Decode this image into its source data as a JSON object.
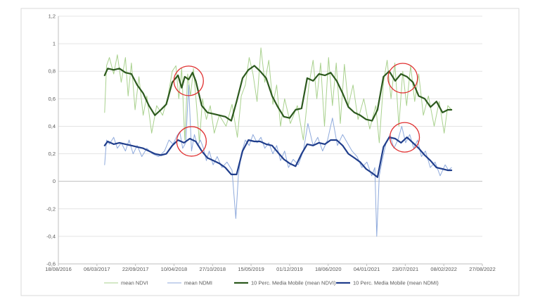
{
  "chart_data": {
    "type": "line",
    "title": "",
    "xlabel": "",
    "ylabel": "",
    "x_tick_labels": [
      "18/08/2016",
      "06/03/2017",
      "22/09/2017",
      "10/04/2018",
      "27/10/2018",
      "15/05/2019",
      "01/12/2019",
      "18/06/2020",
      "04/01/2021",
      "23/07/2021",
      "08/02/2022",
      "27/08/2022"
    ],
    "y_tick_labels": [
      "-0,6",
      "-0,4",
      "-0,2",
      "0",
      "0,2",
      "0,4",
      "0,6",
      "0,8",
      "1",
      "1,2"
    ],
    "xlim": [
      "2016-08-18",
      "2022-08-27"
    ],
    "ylim": [
      -0.6,
      1.2
    ],
    "grid": "horizontal",
    "legend_position": "bottom",
    "series": [
      {
        "name": "mean NDVI",
        "color": "#a9d18e",
        "width": 1.0,
        "dates": [
          "2017-04-15",
          "2017-04-25",
          "2017-05-10",
          "2017-06-01",
          "2017-06-20",
          "2017-07-10",
          "2017-08-01",
          "2017-08-15",
          "2017-09-01",
          "2017-09-20",
          "2017-10-10",
          "2017-11-01",
          "2017-11-20",
          "2017-12-15",
          "2018-01-10",
          "2018-02-10",
          "2018-03-10",
          "2018-04-01",
          "2018-04-20",
          "2018-05-05",
          "2018-05-20",
          "2018-06-05",
          "2018-06-20",
          "2018-07-05",
          "2018-07-20",
          "2018-08-05",
          "2018-08-20",
          "2018-09-05",
          "2018-09-25",
          "2018-10-15",
          "2018-11-05",
          "2018-12-01",
          "2019-01-05",
          "2019-02-05",
          "2019-03-05",
          "2019-03-25",
          "2019-04-15",
          "2019-05-05",
          "2019-05-25",
          "2019-06-15",
          "2019-07-05",
          "2019-07-25",
          "2019-08-15",
          "2019-09-05",
          "2019-09-25",
          "2019-10-15",
          "2019-11-05",
          "2019-12-05",
          "2020-01-10",
          "2020-02-10",
          "2020-03-10",
          "2020-04-01",
          "2020-04-20",
          "2020-05-10",
          "2020-05-30",
          "2020-06-20",
          "2020-07-10",
          "2020-07-30",
          "2020-08-20",
          "2020-09-10",
          "2020-10-01",
          "2020-10-25",
          "2020-11-20",
          "2020-12-20",
          "2021-01-20",
          "2021-02-20",
          "2021-03-10",
          "2021-04-01",
          "2021-04-20",
          "2021-05-10",
          "2021-05-30",
          "2021-06-20",
          "2021-07-10",
          "2021-07-30",
          "2021-08-20",
          "2021-09-10",
          "2021-10-01",
          "2021-10-25",
          "2021-11-20",
          "2021-12-20",
          "2022-01-15",
          "2022-02-10",
          "2022-03-01",
          "2022-03-20"
        ],
        "values": [
          0.5,
          0.84,
          0.9,
          0.78,
          0.92,
          0.72,
          0.9,
          0.62,
          0.86,
          0.52,
          0.76,
          0.48,
          0.62,
          0.35,
          0.55,
          0.48,
          0.62,
          0.8,
          0.84,
          0.6,
          0.82,
          0.3,
          0.78,
          0.62,
          0.82,
          0.55,
          0.28,
          0.6,
          0.45,
          0.55,
          0.35,
          0.48,
          0.4,
          0.56,
          0.32,
          0.62,
          0.7,
          0.9,
          0.78,
          0.58,
          0.97,
          0.72,
          0.88,
          0.56,
          0.7,
          0.4,
          0.6,
          0.42,
          0.55,
          0.3,
          0.7,
          0.88,
          0.6,
          0.86,
          0.4,
          0.9,
          0.55,
          0.86,
          0.42,
          0.85,
          0.55,
          0.7,
          0.45,
          0.6,
          0.38,
          0.55,
          0.28,
          0.72,
          0.88,
          0.6,
          0.86,
          0.4,
          0.8,
          0.55,
          0.84,
          0.58,
          0.78,
          0.48,
          0.62,
          0.4,
          0.58,
          0.35,
          0.55,
          0.52
        ]
      },
      {
        "name": "mean NDMI",
        "color": "#8faadc",
        "width": 1.0,
        "dates": [
          "2017-04-15",
          "2017-04-25",
          "2017-05-10",
          "2017-06-01",
          "2017-06-20",
          "2017-07-10",
          "2017-08-01",
          "2017-08-20",
          "2017-09-10",
          "2017-10-01",
          "2017-10-25",
          "2017-11-20",
          "2017-12-20",
          "2018-01-20",
          "2018-02-20",
          "2018-03-15",
          "2018-04-05",
          "2018-04-25",
          "2018-05-10",
          "2018-05-25",
          "2018-06-10",
          "2018-06-25",
          "2018-07-10",
          "2018-07-25",
          "2018-08-10",
          "2018-08-25",
          "2018-09-10",
          "2018-09-25",
          "2018-10-10",
          "2018-10-30",
          "2018-11-20",
          "2018-12-15",
          "2019-01-10",
          "2019-02-05",
          "2019-02-25",
          "2019-03-10",
          "2019-03-25",
          "2019-04-15",
          "2019-05-05",
          "2019-05-25",
          "2019-06-15",
          "2019-07-05",
          "2019-07-25",
          "2019-08-15",
          "2019-09-05",
          "2019-09-25",
          "2019-10-15",
          "2019-11-05",
          "2019-11-25",
          "2019-12-20",
          "2020-01-15",
          "2020-02-10",
          "2020-03-05",
          "2020-04-01",
          "2020-04-25",
          "2020-05-20",
          "2020-06-15",
          "2020-07-10",
          "2020-08-05",
          "2020-09-01",
          "2020-09-25",
          "2020-10-20",
          "2020-11-15",
          "2020-12-10",
          "2021-01-05",
          "2021-01-30",
          "2021-02-15",
          "2021-02-25",
          "2021-03-10",
          "2021-03-25",
          "2021-04-15",
          "2021-05-05",
          "2021-05-25",
          "2021-06-15",
          "2021-07-05",
          "2021-07-25",
          "2021-08-15",
          "2021-09-05",
          "2021-09-25",
          "2021-10-15",
          "2021-11-05",
          "2021-11-30",
          "2021-12-25",
          "2022-01-20",
          "2022-02-15",
          "2022-03-05",
          "2022-03-20"
        ],
        "values": [
          0.12,
          0.3,
          0.27,
          0.32,
          0.24,
          0.28,
          0.22,
          0.3,
          0.2,
          0.26,
          0.18,
          0.24,
          0.2,
          0.18,
          0.22,
          0.3,
          0.27,
          0.33,
          0.36,
          0.24,
          0.28,
          0.7,
          0.22,
          0.34,
          0.26,
          0.3,
          0.24,
          0.15,
          0.22,
          0.12,
          0.18,
          0.1,
          0.14,
          0.08,
          -0.27,
          0.04,
          0.2,
          0.3,
          0.26,
          0.34,
          0.28,
          0.32,
          0.24,
          0.28,
          0.2,
          0.26,
          0.15,
          0.22,
          0.1,
          0.16,
          0.12,
          0.22,
          0.42,
          0.26,
          0.32,
          0.22,
          0.3,
          0.46,
          0.26,
          0.34,
          0.28,
          0.22,
          0.18,
          0.1,
          0.14,
          0.04,
          0.1,
          -0.4,
          0.04,
          0.15,
          0.28,
          0.34,
          0.24,
          0.3,
          0.4,
          0.28,
          0.34,
          0.24,
          0.3,
          0.18,
          0.22,
          0.1,
          0.14,
          0.04,
          0.12,
          0.08,
          0.1
        ]
      },
      {
        "name": "10 Perc. Media Mobile (mean NDVI)",
        "color": "#2d5a1e",
        "width": 2.2,
        "dates": [
          "2017-04-15",
          "2017-05-01",
          "2017-06-01",
          "2017-07-01",
          "2017-08-01",
          "2017-09-01",
          "2017-10-01",
          "2017-11-01",
          "2017-12-01",
          "2018-01-01",
          "2018-02-01",
          "2018-03-01",
          "2018-04-01",
          "2018-05-01",
          "2018-05-20",
          "2018-06-05",
          "2018-06-25",
          "2018-07-15",
          "2018-08-01",
          "2018-09-01",
          "2018-10-01",
          "2018-11-01",
          "2018-12-01",
          "2019-01-01",
          "2019-02-01",
          "2019-03-01",
          "2019-04-01",
          "2019-05-01",
          "2019-06-01",
          "2019-07-01",
          "2019-08-01",
          "2019-09-01",
          "2019-10-01",
          "2019-11-01",
          "2019-12-01",
          "2020-01-01",
          "2020-02-01",
          "2020-03-01",
          "2020-04-01",
          "2020-05-01",
          "2020-06-01",
          "2020-07-01",
          "2020-08-01",
          "2020-09-01",
          "2020-10-01",
          "2020-11-01",
          "2020-12-01",
          "2021-01-01",
          "2021-02-01",
          "2021-03-01",
          "2021-04-01",
          "2021-05-01",
          "2021-06-01",
          "2021-07-01",
          "2021-08-01",
          "2021-09-01",
          "2021-10-01",
          "2021-11-01",
          "2021-12-01",
          "2022-01-01",
          "2022-02-01",
          "2022-03-01",
          "2022-03-20"
        ],
        "values": [
          0.77,
          0.82,
          0.81,
          0.82,
          0.79,
          0.78,
          0.7,
          0.64,
          0.55,
          0.48,
          0.52,
          0.56,
          0.72,
          0.77,
          0.68,
          0.76,
          0.74,
          0.79,
          0.73,
          0.55,
          0.5,
          0.49,
          0.48,
          0.47,
          0.44,
          0.58,
          0.75,
          0.81,
          0.84,
          0.8,
          0.75,
          0.62,
          0.54,
          0.47,
          0.46,
          0.52,
          0.53,
          0.75,
          0.73,
          0.78,
          0.77,
          0.79,
          0.73,
          0.64,
          0.54,
          0.5,
          0.48,
          0.45,
          0.44,
          0.52,
          0.76,
          0.8,
          0.73,
          0.78,
          0.76,
          0.72,
          0.62,
          0.6,
          0.54,
          0.58,
          0.5,
          0.52,
          0.52
        ]
      },
      {
        "name": "10 Perc. Media Mobile (mean NDMI)",
        "color": "#203e8c",
        "width": 2.2,
        "dates": [
          "2017-04-15",
          "2017-05-01",
          "2017-06-01",
          "2017-07-01",
          "2017-08-01",
          "2017-09-01",
          "2017-10-01",
          "2017-11-01",
          "2017-12-01",
          "2018-01-01",
          "2018-02-01",
          "2018-03-01",
          "2018-04-01",
          "2018-05-01",
          "2018-06-01",
          "2018-07-01",
          "2018-08-01",
          "2018-09-01",
          "2018-10-01",
          "2018-11-01",
          "2018-12-01",
          "2019-01-01",
          "2019-02-01",
          "2019-03-01",
          "2019-04-01",
          "2019-05-01",
          "2019-06-01",
          "2019-07-01",
          "2019-08-01",
          "2019-09-01",
          "2019-10-01",
          "2019-11-01",
          "2019-12-01",
          "2020-01-01",
          "2020-02-01",
          "2020-03-01",
          "2020-04-01",
          "2020-05-01",
          "2020-06-01",
          "2020-07-01",
          "2020-08-01",
          "2020-09-01",
          "2020-10-01",
          "2020-11-01",
          "2020-12-01",
          "2021-01-01",
          "2021-02-01",
          "2021-03-01",
          "2021-04-01",
          "2021-05-01",
          "2021-06-01",
          "2021-07-01",
          "2021-08-01",
          "2021-09-01",
          "2021-10-01",
          "2021-11-01",
          "2021-12-01",
          "2022-01-01",
          "2022-02-01",
          "2022-03-01",
          "2022-03-20"
        ],
        "values": [
          0.26,
          0.29,
          0.27,
          0.28,
          0.27,
          0.26,
          0.25,
          0.24,
          0.22,
          0.2,
          0.19,
          0.2,
          0.26,
          0.3,
          0.28,
          0.31,
          0.29,
          0.22,
          0.17,
          0.15,
          0.13,
          0.1,
          0.05,
          0.05,
          0.22,
          0.3,
          0.29,
          0.29,
          0.27,
          0.26,
          0.21,
          0.16,
          0.13,
          0.11,
          0.2,
          0.27,
          0.26,
          0.28,
          0.27,
          0.3,
          0.3,
          0.26,
          0.2,
          0.17,
          0.14,
          0.09,
          0.06,
          0.03,
          0.25,
          0.32,
          0.31,
          0.28,
          0.32,
          0.28,
          0.24,
          0.19,
          0.15,
          0.1,
          0.09,
          0.08,
          0.08
        ]
      }
    ],
    "annotations": [
      {
        "type": "circle",
        "date": "2018-06-25",
        "value": 0.73,
        "color": "#e03030"
      },
      {
        "type": "circle",
        "date": "2018-07-10",
        "value": 0.29,
        "color": "#e03030"
      },
      {
        "type": "circle",
        "date": "2021-07-10",
        "value": 0.75,
        "color": "#e03030"
      },
      {
        "type": "circle",
        "date": "2021-07-20",
        "value": 0.32,
        "color": "#e03030"
      }
    ]
  }
}
